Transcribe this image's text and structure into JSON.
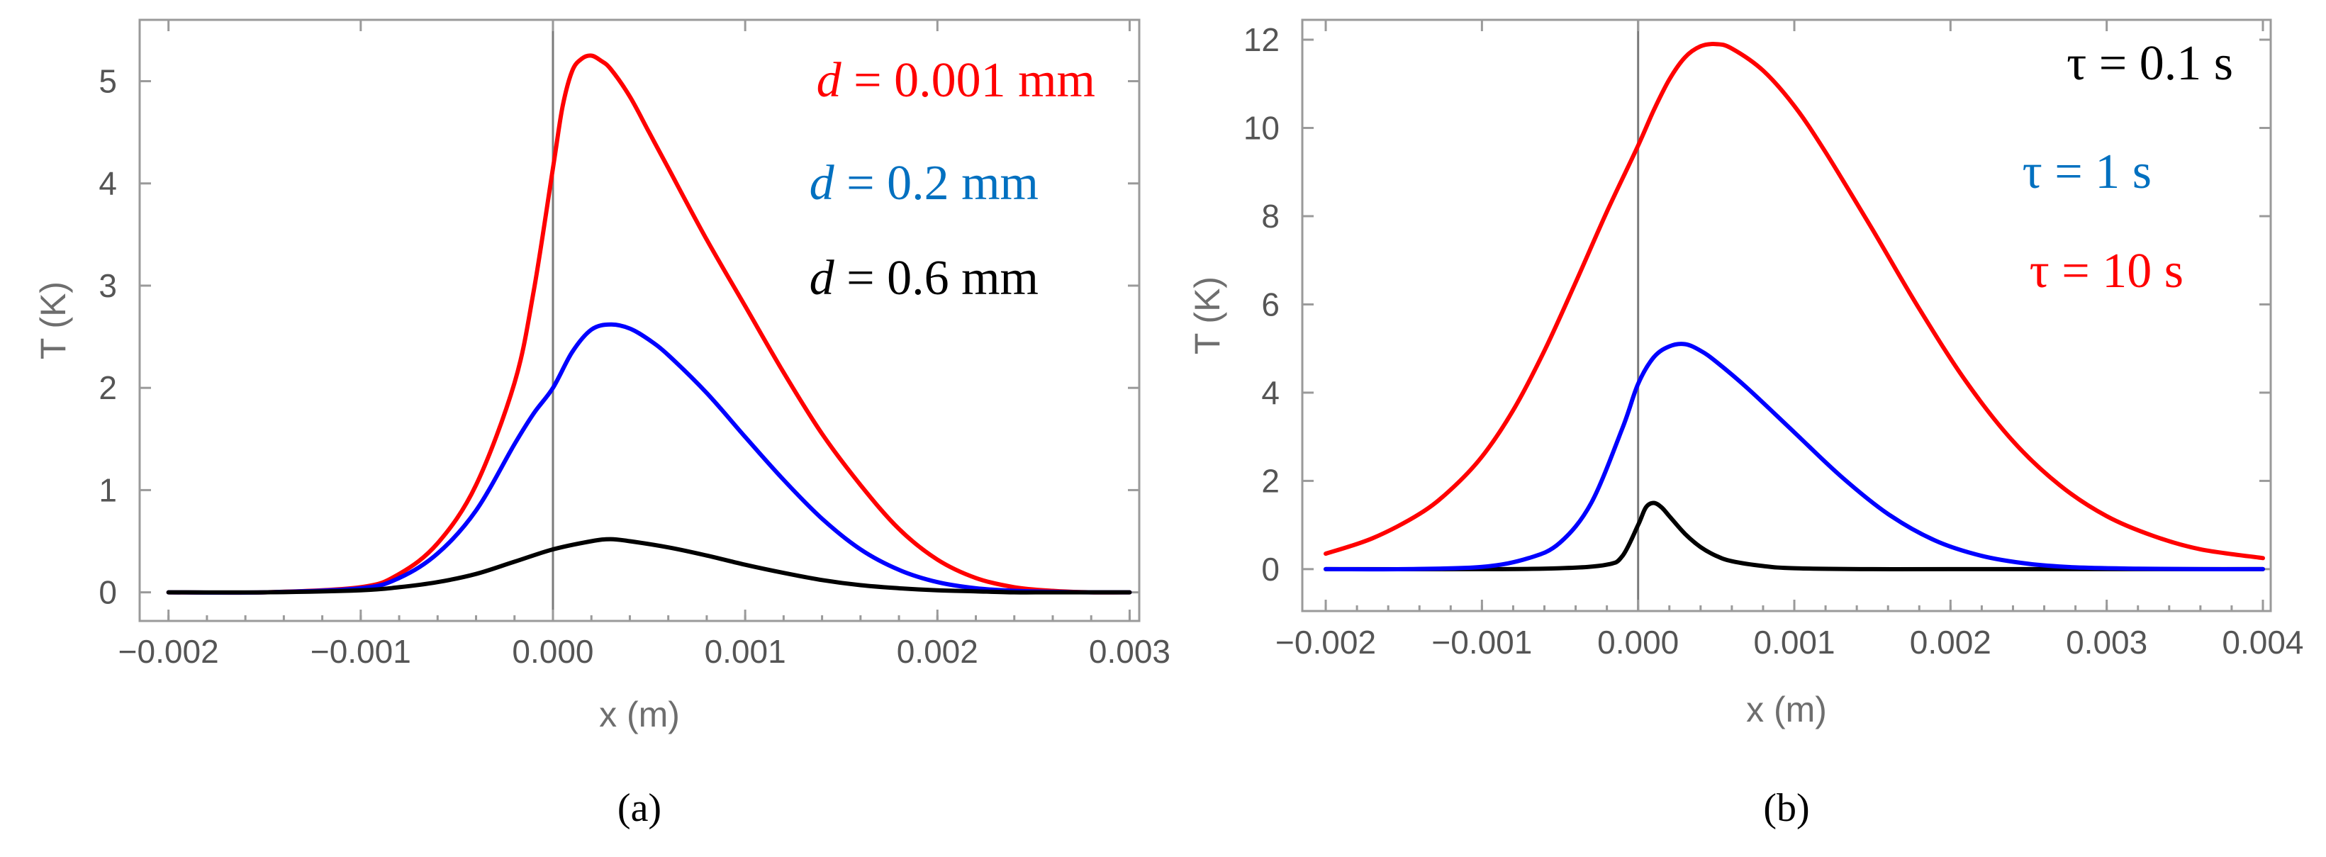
{
  "chart_data": [
    {
      "panel": "a",
      "type": "line",
      "caption": "(a)",
      "xlabel": "x (m)",
      "ylabel": "T (K)",
      "xlim": [
        -0.00215,
        0.00305
      ],
      "ylim": [
        -0.28,
        5.6
      ],
      "xticks": [
        -0.002,
        -0.001,
        0.0,
        0.001,
        0.002,
        0.003
      ],
      "xtick_labels": [
        "−0.002",
        "−0.001",
        "0.000",
        "0.001",
        "0.002",
        "0.003"
      ],
      "yticks": [
        0,
        1,
        2,
        3,
        4,
        5
      ],
      "ytick_labels": [
        "0",
        "1",
        "2",
        "3",
        "4",
        "5"
      ],
      "legend_position": "top-right",
      "series": [
        {
          "name": "d = 0.001 mm",
          "var": "d",
          "rest": " = 0.001 mm",
          "color": "#ff0000",
          "x": [
            -0.002,
            -0.0015,
            -0.001,
            -0.0008,
            -0.0006,
            -0.0004,
            -0.0002,
            -0.0001,
            0.0,
            5e-05,
            0.0001,
            0.00015,
            0.0002,
            0.00025,
            0.0003,
            0.0004,
            0.0005,
            0.0006,
            0.0008,
            0.001,
            0.0012,
            0.0014,
            0.0016,
            0.0018,
            0.002,
            0.0022,
            0.0024,
            0.0026,
            0.0028,
            0.003
          ],
          "y": [
            0.0,
            0.0,
            0.05,
            0.18,
            0.48,
            1.05,
            2.05,
            2.95,
            4.15,
            4.75,
            5.1,
            5.22,
            5.25,
            5.2,
            5.12,
            4.85,
            4.5,
            4.15,
            3.45,
            2.8,
            2.15,
            1.55,
            1.05,
            0.62,
            0.32,
            0.14,
            0.05,
            0.015,
            0.0,
            0.0
          ]
        },
        {
          "name": "d = 0.2 mm",
          "var": "d",
          "rest": " = 0.2 mm",
          "color": "#0000ff",
          "legend_color": "#0070c0",
          "x": [
            -0.002,
            -0.0015,
            -0.001,
            -0.0008,
            -0.0006,
            -0.0004,
            -0.0002,
            -0.0001,
            0.0,
            0.0001,
            0.0002,
            0.0003,
            0.0004,
            0.0005,
            0.0006,
            0.0008,
            0.001,
            0.0012,
            0.0014,
            0.0016,
            0.0018,
            0.002,
            0.0022,
            0.0024,
            0.0026,
            0.0028,
            0.003
          ],
          "y": [
            0.0,
            0.0,
            0.04,
            0.14,
            0.38,
            0.8,
            1.45,
            1.75,
            2.0,
            2.35,
            2.57,
            2.62,
            2.58,
            2.47,
            2.32,
            1.95,
            1.52,
            1.1,
            0.72,
            0.42,
            0.22,
            0.1,
            0.04,
            0.015,
            0.005,
            0.0,
            0.0
          ]
        },
        {
          "name": "d = 0.6 mm",
          "var": "d",
          "rest": " = 0.6 mm",
          "color": "#000000",
          "x": [
            -0.002,
            -0.0015,
            -0.001,
            -0.0008,
            -0.0006,
            -0.0004,
            -0.0002,
            0.0,
            0.0002,
            0.0003,
            0.0004,
            0.0006,
            0.0008,
            0.001,
            0.0012,
            0.0014,
            0.0016,
            0.0018,
            0.002,
            0.0022,
            0.0024,
            0.0026,
            0.003
          ],
          "y": [
            0.0,
            0.0,
            0.02,
            0.05,
            0.1,
            0.18,
            0.3,
            0.42,
            0.5,
            0.52,
            0.5,
            0.44,
            0.36,
            0.27,
            0.19,
            0.12,
            0.07,
            0.04,
            0.02,
            0.01,
            0.0,
            0.0,
            0.0
          ]
        }
      ]
    },
    {
      "panel": "b",
      "type": "line",
      "caption": "(b)",
      "xlabel": "x (m)",
      "ylabel": "T (K)",
      "xlim": [
        -0.00215,
        0.00405
      ],
      "ylim": [
        -0.95,
        12.45
      ],
      "xticks": [
        -0.002,
        -0.001,
        0.0,
        0.001,
        0.002,
        0.003,
        0.004
      ],
      "xtick_labels": [
        "−0.002",
        "−0.001",
        "0.000",
        "0.001",
        "0.002",
        "0.003",
        "0.004"
      ],
      "yticks": [
        0,
        2,
        4,
        6,
        8,
        10,
        12
      ],
      "ytick_labels": [
        "0",
        "2",
        "4",
        "6",
        "8",
        "10",
        "12"
      ],
      "legend_position": "top-right",
      "series": [
        {
          "name": "τ = 0.1 s",
          "var": "τ",
          "rest": " = 0.1 s",
          "color": "#000000",
          "x": [
            -0.002,
            -0.001,
            -0.0005,
            -0.0002,
            -0.0001,
            0.0,
            5e-05,
            0.0001,
            0.00015,
            0.0002,
            0.0003,
            0.0004,
            0.0005,
            0.0006,
            0.0008,
            0.001,
            0.0015,
            0.002,
            0.003,
            0.004
          ],
          "y": [
            0.0,
            0.0,
            0.02,
            0.1,
            0.3,
            1.0,
            1.4,
            1.5,
            1.4,
            1.2,
            0.8,
            0.5,
            0.3,
            0.18,
            0.07,
            0.02,
            0.0,
            0.0,
            0.0,
            0.0
          ]
        },
        {
          "name": "τ = 1 s",
          "var": "τ",
          "rest": " = 1 s",
          "color": "#0000ff",
          "legend_color": "#0070c0",
          "x": [
            -0.002,
            -0.0015,
            -0.001,
            -0.0007,
            -0.0005,
            -0.0003,
            -0.0001,
            0.0,
            0.0001,
            0.0002,
            0.0003,
            0.0004,
            0.0005,
            0.0007,
            0.001,
            0.0013,
            0.0016,
            0.0019,
            0.0022,
            0.0025,
            0.0028,
            0.0032,
            0.0036,
            0.004
          ],
          "y": [
            0.0,
            0.0,
            0.05,
            0.25,
            0.6,
            1.5,
            3.2,
            4.2,
            4.8,
            5.05,
            5.1,
            4.95,
            4.7,
            4.1,
            3.1,
            2.1,
            1.25,
            0.65,
            0.3,
            0.12,
            0.04,
            0.01,
            0.0,
            0.0
          ]
        },
        {
          "name": "τ = 10 s",
          "var": "τ",
          "rest": " = 10 s",
          "color": "#ff0000",
          "x": [
            -0.002,
            -0.0017,
            -0.0014,
            -0.0012,
            -0.001,
            -0.0008,
            -0.0006,
            -0.0004,
            -0.0002,
            0.0,
            0.0001,
            0.0002,
            0.0003,
            0.0004,
            0.0005,
            0.0006,
            0.0008,
            0.001,
            0.0012,
            0.0015,
            0.0018,
            0.0021,
            0.0024,
            0.0027,
            0.003,
            0.0033,
            0.0036,
            0.004
          ],
          "y": [
            0.35,
            0.7,
            1.25,
            1.8,
            2.55,
            3.6,
            4.95,
            6.5,
            8.1,
            9.6,
            10.4,
            11.1,
            11.6,
            11.85,
            11.9,
            11.8,
            11.3,
            10.5,
            9.45,
            7.7,
            5.9,
            4.25,
            2.9,
            1.9,
            1.2,
            0.75,
            0.45,
            0.25
          ]
        }
      ]
    }
  ]
}
